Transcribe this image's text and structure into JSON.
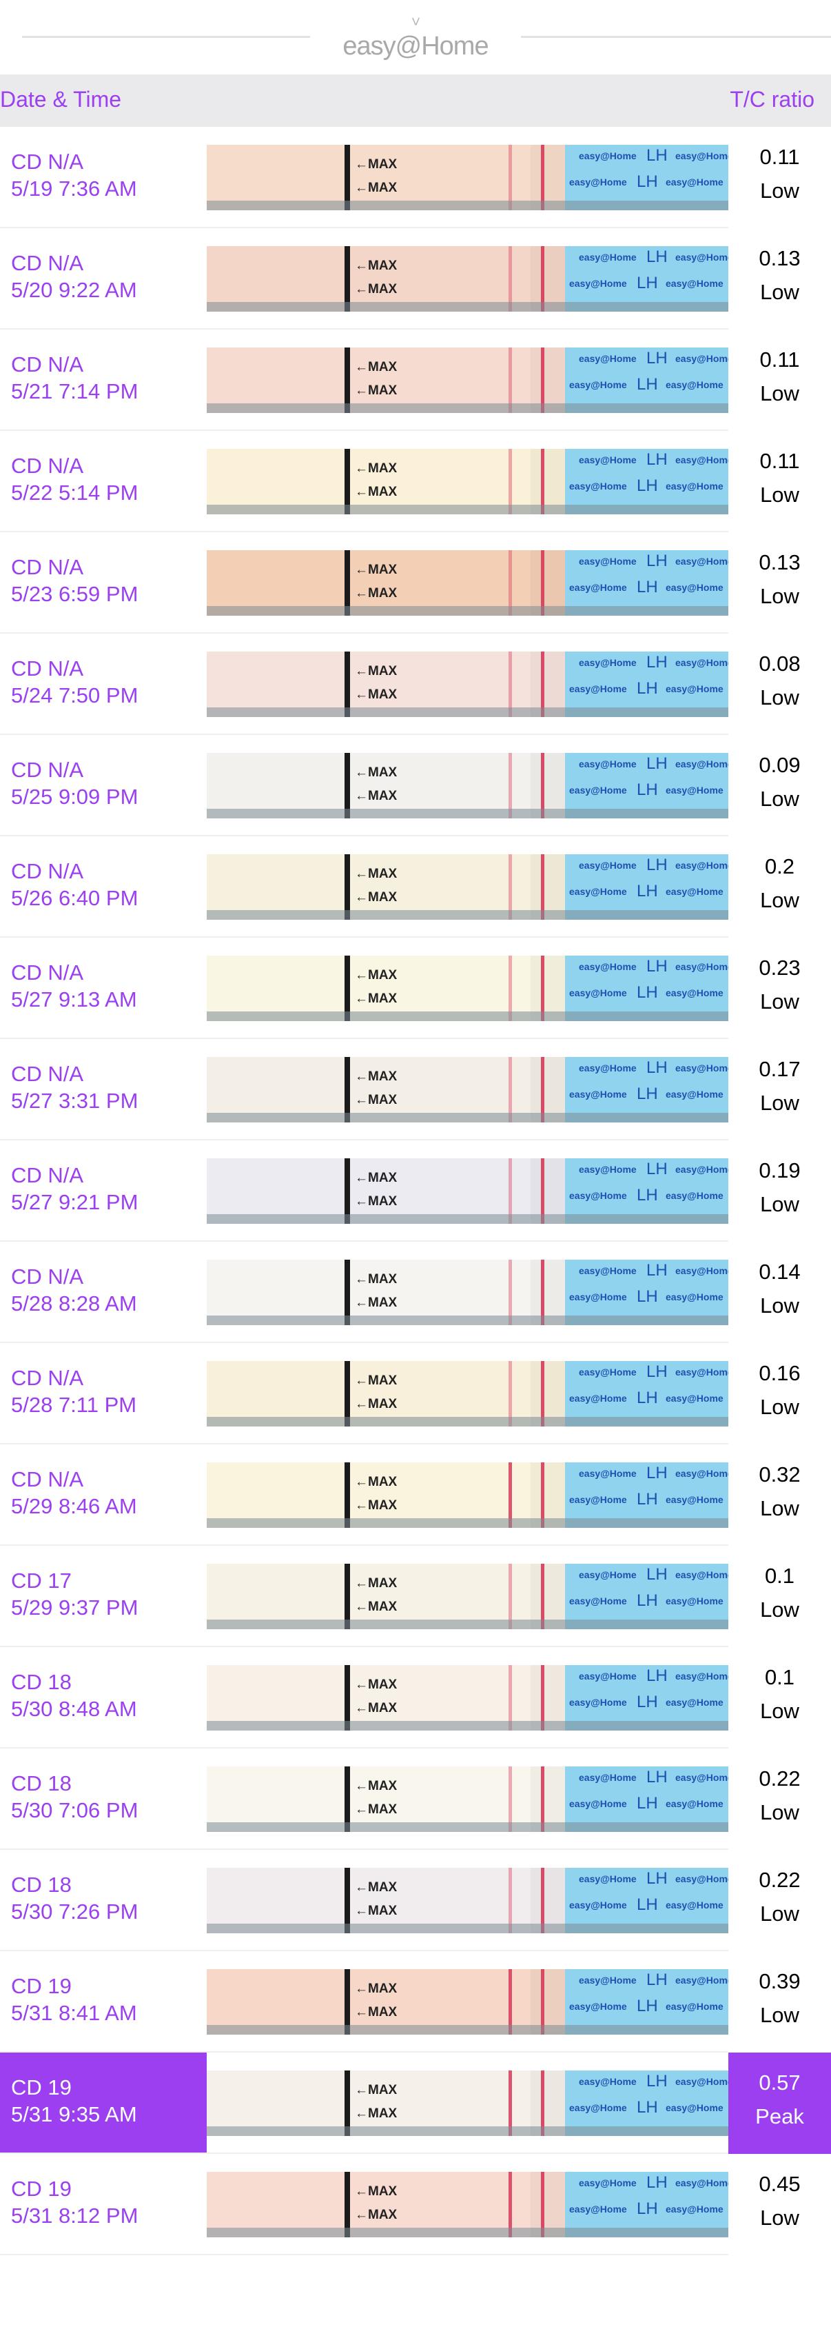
{
  "app": {
    "logo_text": "easy@Home"
  },
  "header": {
    "date_time": "Date & Time",
    "tc_ratio": "T/C ratio"
  },
  "strip_labels": {
    "max": "←MAX",
    "lh": "LH",
    "brand": "easy@Home"
  },
  "colors": {
    "accent": "#9b3ff0",
    "test_line": "#d63a5a",
    "strip_blue": "#8fd3ee"
  },
  "rows": [
    {
      "cd": "CD N/A",
      "datetime": "5/19 7:36 AM",
      "ratio": "0.11",
      "level": "Low",
      "tone": "#f6dccb"
    },
    {
      "cd": "CD N/A",
      "datetime": "5/20 9:22 AM",
      "ratio": "0.13",
      "level": "Low",
      "tone": "#f4d6c8"
    },
    {
      "cd": "CD N/A",
      "datetime": "5/21 7:14 PM",
      "ratio": "0.11",
      "level": "Low",
      "tone": "#f6dbd0"
    },
    {
      "cd": "CD N/A",
      "datetime": "5/22 5:14 PM",
      "ratio": "0.11",
      "level": "Low",
      "tone": "#faf1d8"
    },
    {
      "cd": "CD N/A",
      "datetime": "5/23 6:59 PM",
      "ratio": "0.13",
      "level": "Low",
      "tone": "#f3cfb5"
    },
    {
      "cd": "CD N/A",
      "datetime": "5/24 7:50 PM",
      "ratio": "0.08",
      "level": "Low",
      "tone": "#f6e2dc"
    },
    {
      "cd": "CD N/A",
      "datetime": "5/25 9:09 PM",
      "ratio": "0.09",
      "level": "Low",
      "tone": "#f2f1ee"
    },
    {
      "cd": "CD N/A",
      "datetime": "5/26 6:40 PM",
      "ratio": "0.2",
      "level": "Low",
      "tone": "#f6f1de"
    },
    {
      "cd": "CD N/A",
      "datetime": "5/27 9:13 AM",
      "ratio": "0.23",
      "level": "Low",
      "tone": "#f9f6e3"
    },
    {
      "cd": "CD N/A",
      "datetime": "5/27 3:31 PM",
      "ratio": "0.17",
      "level": "Low",
      "tone": "#f4efe6"
    },
    {
      "cd": "CD N/A",
      "datetime": "5/27 9:21 PM",
      "ratio": "0.19",
      "level": "Low",
      "tone": "#ecebf2"
    },
    {
      "cd": "CD N/A",
      "datetime": "5/28 8:28 AM",
      "ratio": "0.14",
      "level": "Low",
      "tone": "#f5f4f0"
    },
    {
      "cd": "CD N/A",
      "datetime": "5/28 7:11 PM",
      "ratio": "0.16",
      "level": "Low",
      "tone": "#f8f0da"
    },
    {
      "cd": "CD N/A",
      "datetime": "5/29 8:46 AM",
      "ratio": "0.32",
      "level": "Low",
      "tone": "#faf4de"
    },
    {
      "cd": "CD 17",
      "datetime": "5/29 9:37 PM",
      "ratio": "0.1",
      "level": "Low",
      "tone": "#f6f2e6"
    },
    {
      "cd": "CD 18",
      "datetime": "5/30 8:48 AM",
      "ratio": "0.1",
      "level": "Low",
      "tone": "#f7f1e8"
    },
    {
      "cd": "CD 18",
      "datetime": "5/30 7:06 PM",
      "ratio": "0.22",
      "level": "Low",
      "tone": "#f8f6ed"
    },
    {
      "cd": "CD 18",
      "datetime": "5/30 7:26 PM",
      "ratio": "0.22",
      "level": "Low",
      "tone": "#f1edee"
    },
    {
      "cd": "CD 19",
      "datetime": "5/31 8:41 AM",
      "ratio": "0.39",
      "level": "Low",
      "tone": "#f6d7c8"
    },
    {
      "cd": "CD 19",
      "datetime": "5/31 9:35 AM",
      "ratio": "0.57",
      "level": "Peak",
      "tone": "#f5f0ea",
      "peak": true
    },
    {
      "cd": "CD 19",
      "datetime": "5/31 8:12 PM",
      "ratio": "0.45",
      "level": "Low",
      "tone": "#f8dcd2"
    }
  ]
}
